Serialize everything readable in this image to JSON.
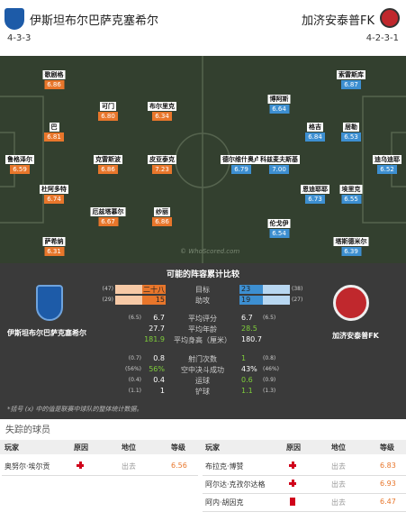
{
  "header": {
    "home": {
      "name": "伊斯坦布尔巴萨克塞希尔",
      "formation": "4-3-3"
    },
    "away": {
      "name": "加济安泰普FK",
      "formation": "4-2-3-1"
    }
  },
  "pitch": {
    "watermark": "© WhoScored.com",
    "home": [
      {
        "name": "歌剧格",
        "rating": "6.86"
      },
      {
        "name": "巴",
        "rating": "6.81"
      },
      {
        "name": "鲁格泽尔",
        "rating": "6.59"
      },
      {
        "name": "杜阿多特",
        "rating": "6.74"
      },
      {
        "name": "萨希纳",
        "rating": "6.31"
      },
      {
        "name": "可门",
        "rating": "6.80"
      },
      {
        "name": "克雷斯波",
        "rating": "6.86"
      },
      {
        "name": "厄兹塔慕尔",
        "rating": "6.67"
      },
      {
        "name": "布尔里克",
        "rating": "6.34"
      },
      {
        "name": "皮亚泰克",
        "rating": "7.23"
      },
      {
        "name": "纱丽",
        "rating": "6.86"
      }
    ],
    "away": [
      {
        "name": "索雷斯库",
        "rating": "6.87"
      },
      {
        "name": "博阿斯",
        "rating": "6.64"
      },
      {
        "name": "格吉",
        "rating": "6.84"
      },
      {
        "name": "居勒",
        "rating": "6.53"
      },
      {
        "name": "德尔维什奥卢",
        "rating": "6.79"
      },
      {
        "name": "科兹麦夫斯基",
        "rating": "7.00"
      },
      {
        "name": "迪乌迪耶",
        "rating": "6.52"
      },
      {
        "name": "恩迪耶耶",
        "rating": "6.73"
      },
      {
        "name": "埃里克",
        "rating": "6.55"
      },
      {
        "name": "伦戈伊",
        "rating": "6.54"
      },
      {
        "name": "塔斯德米尔",
        "rating": "6.39"
      }
    ]
  },
  "comparison": {
    "title": "可能的阵容累计比较",
    "home_name": "伊斯坦布尔巴萨克塞希尔",
    "away_name": "加济安泰普FK",
    "rows": [
      {
        "label": "目标",
        "home_league": "(47)",
        "home": "二十八",
        "away": "23",
        "away_league": "(38)",
        "bar": true
      },
      {
        "label": "助攻",
        "home_league": "(29)",
        "home": "15",
        "away": "19",
        "away_league": "(27)",
        "bar": true
      },
      {
        "label": "平均评分",
        "home_league": "(6.5)",
        "home": "6.7",
        "away": "6.7",
        "away_league": "(6.5)"
      },
      {
        "label": "平均年龄",
        "home": "27.7",
        "away": "28.5",
        "better": "away"
      },
      {
        "label": "平均身高（厘米）",
        "home": "181.9",
        "away": "180.7",
        "better": "home"
      },
      {
        "label": "射门次数",
        "home_league": "(0.7)",
        "home": "0.8",
        "away": "1",
        "away_league": "(0.8)",
        "better": "away"
      },
      {
        "label": "空中决斗成功",
        "home_league": "(56%)",
        "home": "56%",
        "away": "43%",
        "away_league": "(46%)",
        "better": "home"
      },
      {
        "label": "运球",
        "home_league": "(0.4)",
        "home": "0.4",
        "away": "0.6",
        "away_league": "(0.9)",
        "better": "away"
      },
      {
        "label": "铲球",
        "home_league": "(1.1)",
        "home": "1",
        "away": "1.1",
        "away_league": "(1.3)",
        "better": "away"
      }
    ],
    "footnote": "*括号 (x) 中的值是联赛中球队的整体统计数据。"
  },
  "missing": {
    "title": "失踪的球员",
    "columns": [
      "玩家",
      "原因",
      "地位",
      "等级"
    ],
    "home": [
      {
        "player": "奥努尔·埃尔贡",
        "reason": "injury",
        "status": "出去",
        "rating": "6.56"
      }
    ],
    "away": [
      {
        "player": "布拉克·博赞",
        "reason": "injury",
        "status": "出去",
        "rating": "6.83"
      },
      {
        "player": "阿尔达·克孜尔达格",
        "reason": "injury",
        "status": "出去",
        "rating": "6.93"
      },
      {
        "player": "阿内·胡因克",
        "reason": "suspension",
        "status": "出去",
        "rating": "6.47"
      }
    ]
  }
}
